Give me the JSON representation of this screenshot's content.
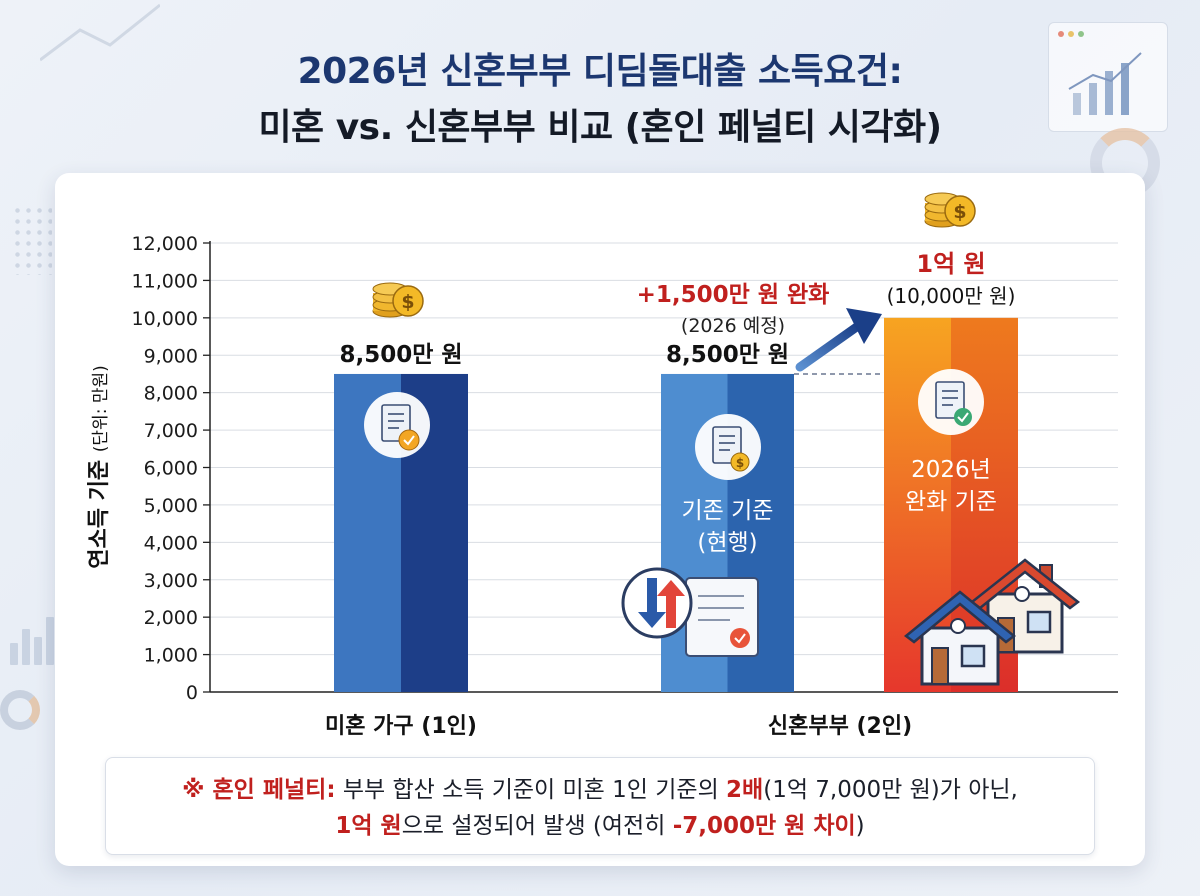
{
  "title": {
    "line1": "2026년 신혼부부 디딤돌대출 소득요건:",
    "line2": "미혼 vs. 신혼부부 비교 (혼인 페널티 시각화)"
  },
  "chart_data": {
    "type": "bar",
    "ylabel": "연소득 기준",
    "ylabel_unit": "(단위: 만원)",
    "ylim": [
      0,
      12000
    ],
    "yticks": [
      "0",
      "1,000",
      "2,000",
      "3,000",
      "4,000",
      "5,000",
      "6,000",
      "7,000",
      "8,000",
      "9,000",
      "10,000",
      "11,000",
      "12,000"
    ],
    "grid": true,
    "categories": [
      "미혼 가구 (1인)",
      "신혼부부 (2인)"
    ],
    "bars": [
      {
        "category": "미혼 가구 (1인)",
        "value": 8500,
        "label": "8,500만 원",
        "inner_text": "",
        "color_light": "#3d76c0",
        "color_dark": "#1d3e88",
        "icon": "document-check-icon"
      },
      {
        "category": "신혼부부 (2인)",
        "value": 8500,
        "label": "8,500만 원",
        "inner_text": "기존 기준\n(현행)",
        "color_light": "#4e8dd0",
        "color_dark": "#2c64ae",
        "icon": "document-coin-icon"
      },
      {
        "category": "신혼부부 (2인)",
        "value": 10000,
        "label": "",
        "inner_text": "2026년\n완화 기준",
        "color_light": "#f5a020",
        "color_dark": "#e6402a",
        "icon": "document-check-icon"
      }
    ],
    "annotations": {
      "increase": "+1,500만 원 완화",
      "increase_note": "(2026 예정)",
      "new_value": "1억 원",
      "new_value_note": "(10,000만 원)"
    }
  },
  "note": {
    "prefix": "※ 혼인 페널티:",
    "text1": " 부부 합산 소득 기준이 미혼 1인 기준의 ",
    "highlight1": "2배",
    "text2": "(1억 7,000만 원)가 아닌,",
    "highlight2": "1억 원",
    "text3": "으로 설정되어 발생 (여전히 ",
    "highlight3": "-7,000만 원 차이",
    "text4": ")"
  },
  "colors": {
    "title_blue": "#1c3770",
    "accent_red": "#c0201e",
    "grid": "#d9dde3",
    "axis": "#222222"
  }
}
